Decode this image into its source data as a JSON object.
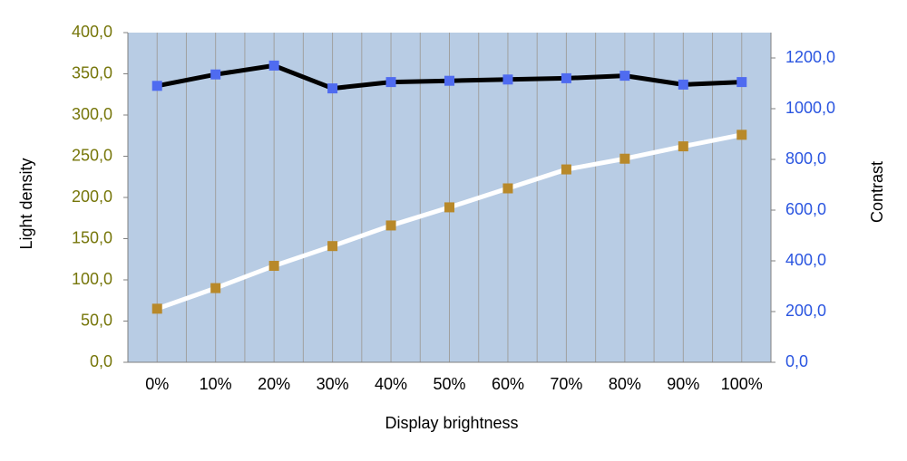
{
  "chart_data": {
    "type": "line",
    "x_label": "Display brightness",
    "y_label": "Light density",
    "y2_label": "Contrast",
    "categories": [
      "0%",
      "10%",
      "20%",
      "30%",
      "40%",
      "50%",
      "60%",
      "70%",
      "80%",
      "90%",
      "100%"
    ],
    "series": [
      {
        "color": "#ffffff",
        "marker_color": "#b8892a",
        "values": [
          65,
          90,
          117,
          141,
          166,
          188,
          211,
          234,
          247,
          262,
          276
        ]
      },
      {
        "color": "#000000",
        "marker_color": "#4f6bf0",
        "axis": "y2",
        "values": [
          1090,
          1135,
          1170,
          1080,
          1105,
          1110,
          1115,
          1120,
          1130,
          1095,
          1105
        ]
      }
    ],
    "ylim": [
      0,
      400
    ],
    "yticks": [
      {
        "value": 0,
        "label": "0,0"
      },
      {
        "value": 50,
        "label": "50,0"
      },
      {
        "value": 100,
        "label": "100,0"
      },
      {
        "value": 150,
        "label": "150,0"
      },
      {
        "value": 200,
        "label": "200,0"
      },
      {
        "value": 250,
        "label": "250,0"
      },
      {
        "value": 300,
        "label": "300,0"
      },
      {
        "value": 350,
        "label": "350,0"
      },
      {
        "value": 400,
        "label": "400,0"
      }
    ],
    "y_color": "#76760a",
    "y2lim": [
      0,
      1300
    ],
    "y2ticks": [
      {
        "value": 0,
        "label": "0,0"
      },
      {
        "value": 200,
        "label": "200,0"
      },
      {
        "value": 400,
        "label": "400,0"
      },
      {
        "value": 600,
        "label": "600,0"
      },
      {
        "value": 800,
        "label": "800,0"
      },
      {
        "value": 1000,
        "label": "1000,0"
      },
      {
        "value": 1200,
        "label": "1200,0"
      }
    ],
    "y2_color": "#2a55e0",
    "plot_background": "#b8cce4"
  }
}
